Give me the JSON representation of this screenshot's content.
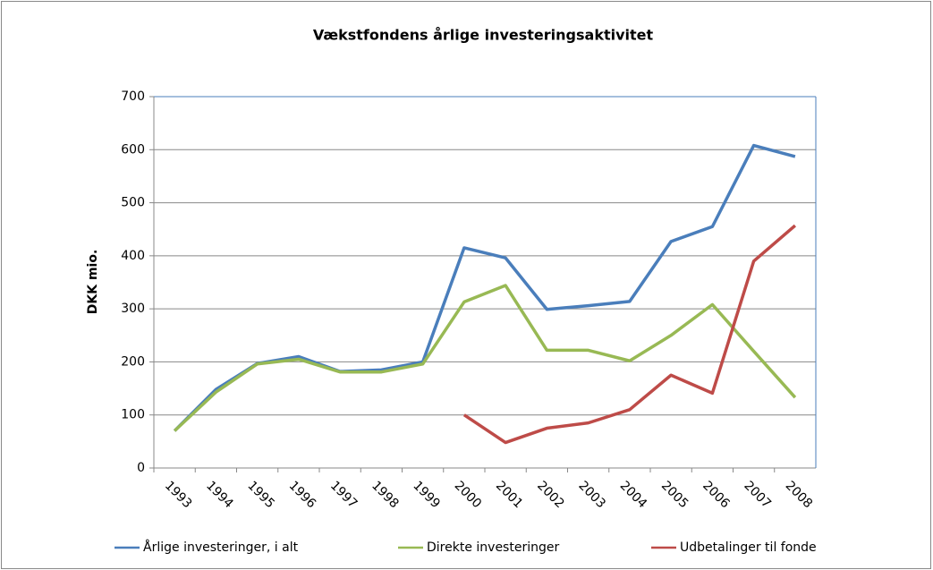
{
  "chart_data": {
    "type": "line",
    "title": "Vækstfondens årlige investeringsaktivitet",
    "y_label": "DKK mio.",
    "categories": [
      "1993",
      "1994",
      "1995",
      "1996",
      "1997",
      "1998",
      "1999",
      "2000",
      "2001",
      "2002",
      "2003",
      "2004",
      "2005",
      "2006",
      "2007",
      "2008"
    ],
    "series": [
      {
        "name": "Årlige investeringer, i alt",
        "color": "#4a7ebb",
        "values": [
          70,
          148,
          197,
          210,
          182,
          185,
          200,
          415,
          396,
          299,
          306,
          314,
          427,
          455,
          608,
          587
        ]
      },
      {
        "name": "Direkte investeringer",
        "color": "#98b954",
        "values": [
          70,
          143,
          196,
          205,
          181,
          181,
          196,
          313,
          344,
          222,
          222,
          202,
          250,
          308,
          220,
          133
        ]
      },
      {
        "name": "Udbetalinger til fonde",
        "color": "#be4b48",
        "values": [
          null,
          null,
          null,
          null,
          null,
          null,
          null,
          100,
          48,
          75,
          85,
          110,
          175,
          141,
          390,
          457
        ]
      }
    ],
    "ylim": [
      0,
      700
    ],
    "yticks": [
      0,
      100,
      200,
      300,
      400,
      500,
      600,
      700
    ],
    "grid": true,
    "legend": "bottom"
  }
}
